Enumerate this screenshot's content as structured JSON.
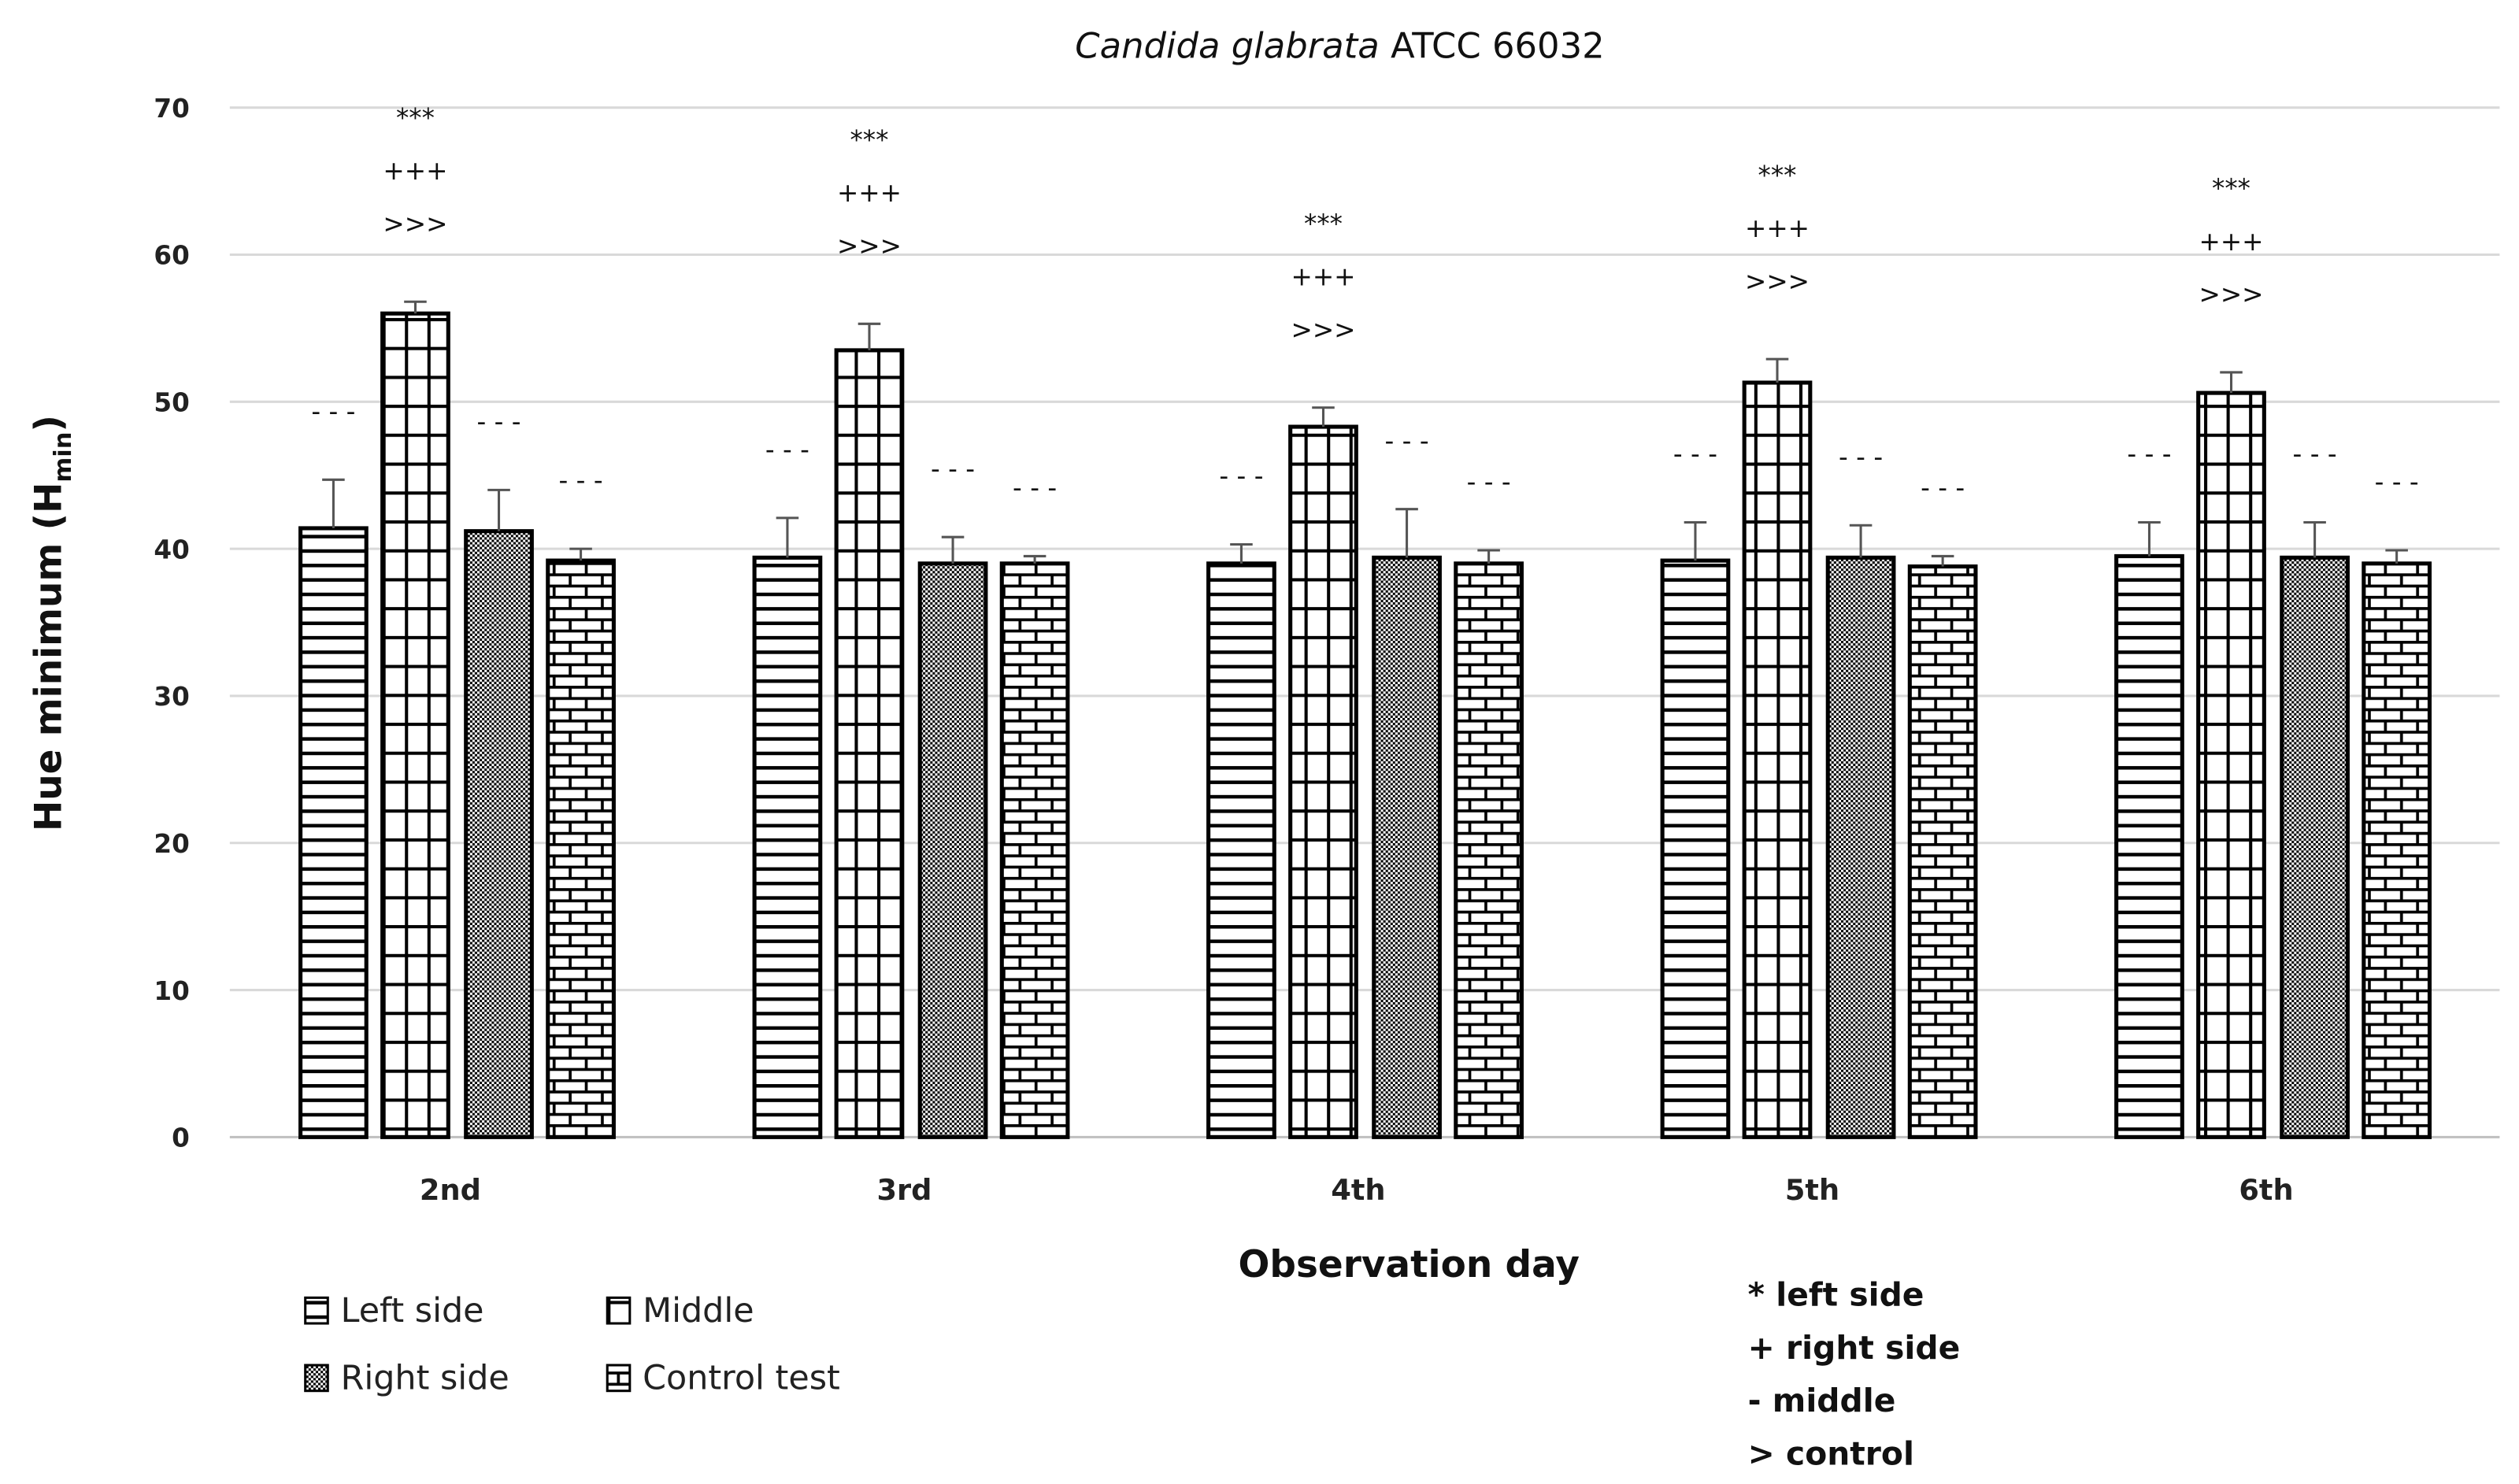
{
  "chart_data": {
    "type": "bar",
    "title_italic": "Candida glabrata",
    "title_rest": " ATCC 66032",
    "xlabel": "Observation day",
    "ylabel_main": "Hue minimum (H",
    "ylabel_sub": "min",
    "ylabel_end": ")",
    "ylim": [
      0,
      70
    ],
    "yticks": [
      0,
      10,
      20,
      30,
      40,
      50,
      60,
      70
    ],
    "grid": true,
    "categories": [
      "2nd",
      "3rd",
      "4th",
      "5th",
      "6th"
    ],
    "series": [
      {
        "name": "Left side",
        "pattern": "horizontal-lines",
        "values": [
          41.4,
          39.4,
          39.0,
          39.2,
          39.5
        ],
        "error": [
          3.3,
          2.7,
          1.3,
          2.6,
          2.3
        ]
      },
      {
        "name": "Middle",
        "pattern": "grid",
        "values": [
          56.0,
          53.5,
          48.3,
          51.3,
          50.6
        ],
        "error": [
          0.8,
          1.8,
          1.3,
          1.6,
          1.4
        ]
      },
      {
        "name": "Right side",
        "pattern": "checker",
        "values": [
          41.2,
          39.0,
          39.4,
          39.4,
          39.4
        ],
        "error": [
          2.8,
          1.8,
          3.3,
          2.2,
          2.4
        ]
      },
      {
        "name": "Control test",
        "pattern": "brick",
        "values": [
          39.2,
          39.0,
          39.0,
          38.8,
          39.0
        ],
        "error": [
          0.8,
          0.5,
          0.9,
          0.7,
          0.9
        ]
      }
    ],
    "annotations": {
      "middle": [
        "***",
        "+++",
        ">>>"
      ],
      "others": "- - -"
    },
    "legend_placement": "bottom-left",
    "significance_key": [
      "* left side",
      "+ right side",
      "-  middle",
      "> control"
    ],
    "colors": {
      "bar_stroke": "#000000",
      "error_bar": "#555555",
      "grid": "#d9d9d9",
      "axis": "#bfbfbf"
    }
  }
}
